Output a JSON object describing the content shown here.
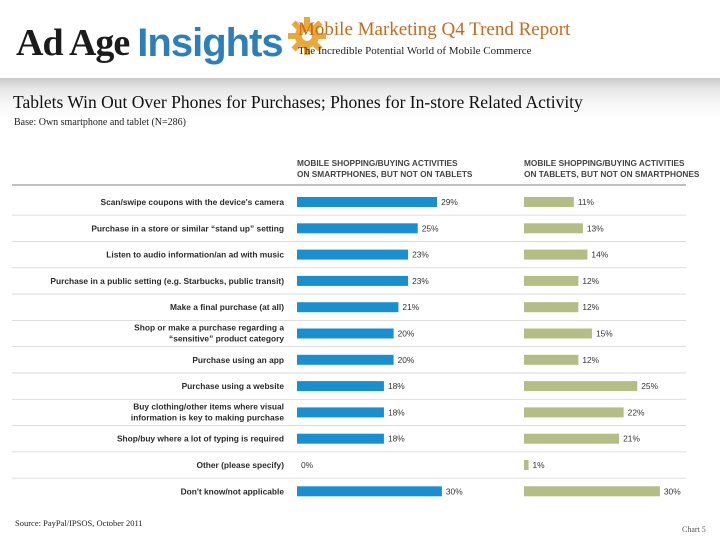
{
  "header": {
    "brand_adage": "Ad Age",
    "brand_insights": "Insights",
    "report_title": "Mobile Marketing Q4 Trend Report",
    "report_subtitle": "The Incredible Potential World of Mobile Commerce"
  },
  "slide": {
    "title": "Tablets Win Out Over Phones for Purchases; Phones for In-store Related Activity",
    "base": "Base: Own smartphone and tablet (N=286)"
  },
  "footer": {
    "source": "Source: PayPal/IPSOS, October 2011",
    "chart_number": "Chart 5"
  },
  "colors": {
    "smartphone": "#1a8fd0",
    "tablet": "#b4bd86",
    "accent": "#c86a1e",
    "brand_blue": "#2e7fb8",
    "gear": "#e9a93a"
  },
  "chart_data": {
    "type": "bar",
    "layout": "paired horizontal bars",
    "unit": "%",
    "categories": [
      [
        "Scan/swipe coupons with the device's camera"
      ],
      [
        "Purchase in a store or similar “stand up” setting"
      ],
      [
        "Listen to audio information/an ad with music"
      ],
      [
        "Purchase in a public setting (e.g. Starbucks, public transit)"
      ],
      [
        "Make a final purchase (at all)"
      ],
      [
        "Shop or make a purchase regarding a",
        "“sensitive” product category"
      ],
      [
        "Purchase using an app"
      ],
      [
        "Purchase using a website"
      ],
      [
        "Buy clothing/other items where visual",
        "information is key to making purchase"
      ],
      [
        "Shop/buy where a lot of typing is required"
      ],
      [
        "Other (please specify)"
      ],
      [
        "Don't know/not applicable"
      ]
    ],
    "series": [
      {
        "name": "smartphone",
        "title_lines": [
          "MOBILE SHOPPING/BUYING ACTIVITIES",
          "ON SMARTPHONES, BUT NOT ON TABLETS"
        ],
        "values": [
          29,
          25,
          23,
          23,
          21,
          20,
          20,
          18,
          18,
          18,
          0,
          30
        ]
      },
      {
        "name": "tablet",
        "title_lines": [
          "MOBILE SHOPPING/BUYING ACTIVITIES",
          "ON TABLETS, BUT NOT ON SMARTPHONES"
        ],
        "values": [
          11,
          13,
          14,
          12,
          12,
          15,
          12,
          25,
          22,
          21,
          1,
          30
        ]
      }
    ]
  }
}
